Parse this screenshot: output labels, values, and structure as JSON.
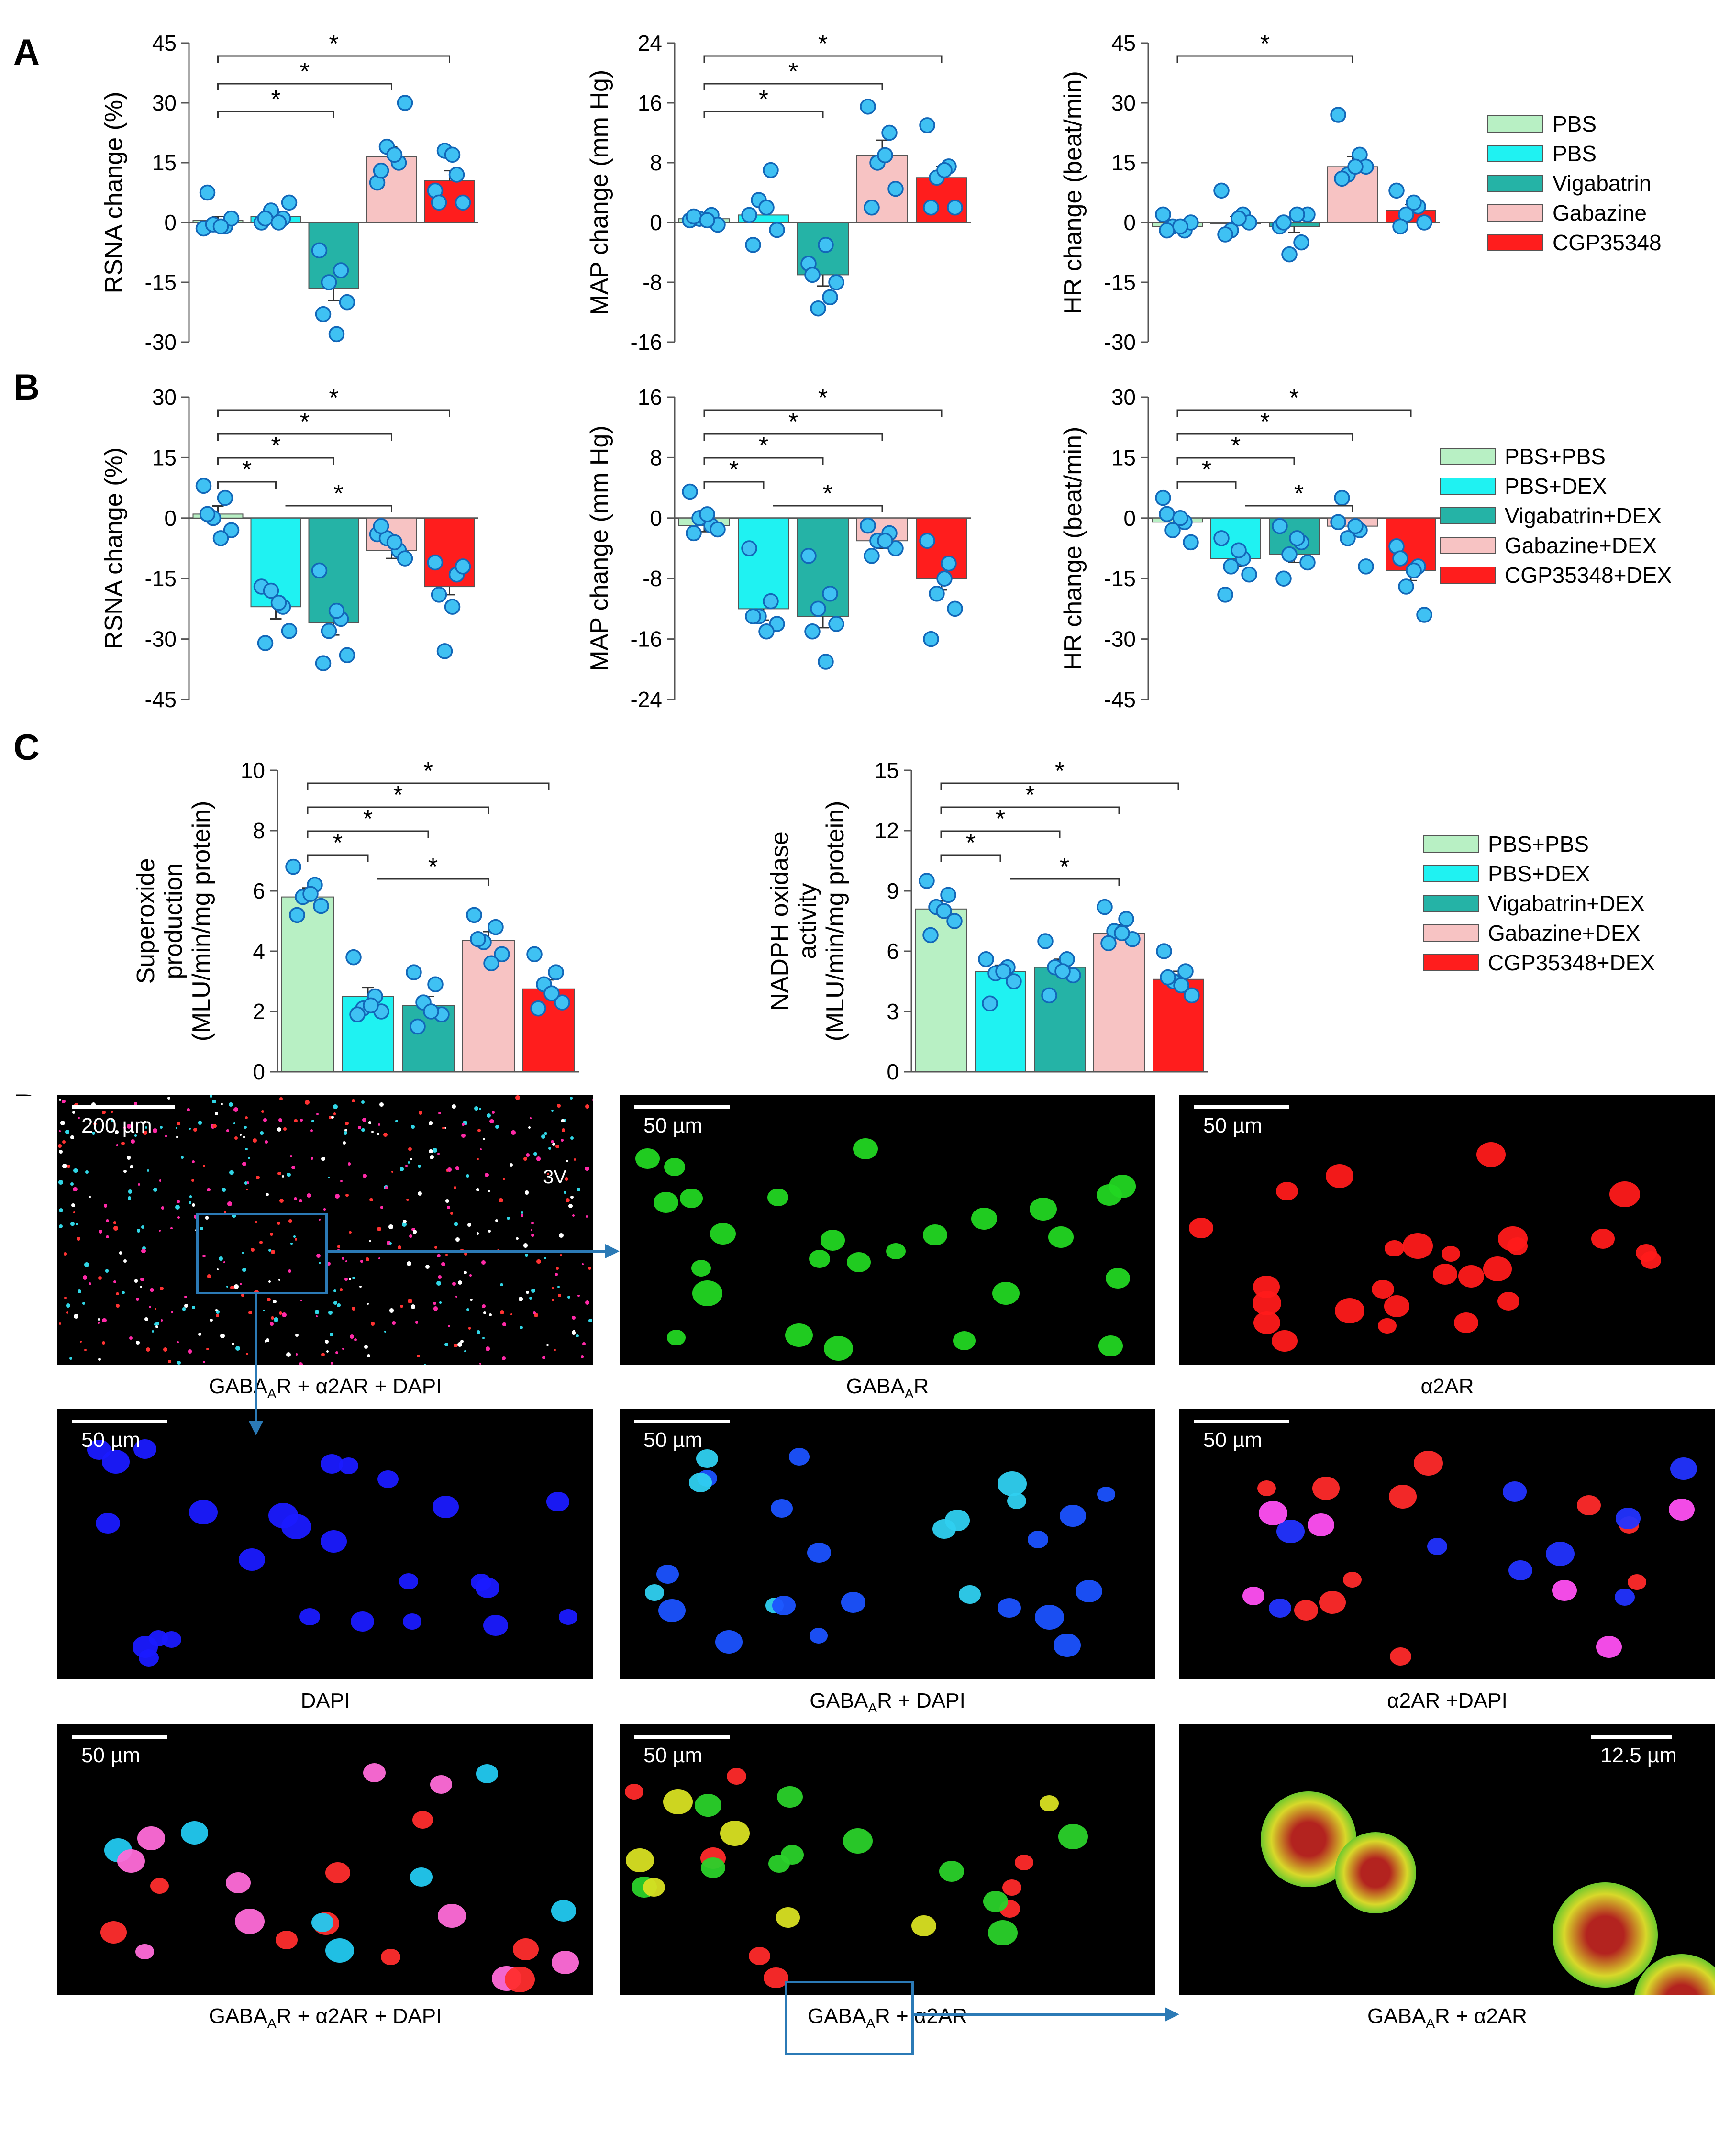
{
  "panels": {
    "A": "A",
    "B": "B",
    "C": "C",
    "D": "D"
  },
  "colors": {
    "PBS_PBS": "#b8f0c4",
    "PBS_DEX": "#1ff2f2",
    "Vigabatrin": "#25b3a6",
    "Gabazine": "#f7c3c3",
    "CGP35348": "#ff1d1d",
    "points": "#3fc1f3",
    "points_edge": "#1267b8"
  },
  "legend_A": [
    "PBS",
    "PBS",
    "Vigabatrin",
    "Gabazine",
    "CGP35348"
  ],
  "legend_B": [
    "PBS+PBS",
    "PBS+DEX",
    "Vigabatrin+DEX",
    "Gabazine+DEX",
    "CGP35348+DEX"
  ],
  "legend_C": [
    "PBS+PBS",
    "PBS+DEX",
    "Vigabatrin+DEX",
    "Gabazine+DEX",
    "CGP35348+DEX"
  ],
  "chart_data": [
    {
      "id": "A_RSNA",
      "type": "bar",
      "panel": "A",
      "ylabel": "RSNA change (%)",
      "ylim": [
        -30,
        45
      ],
      "yticks": [
        -30,
        -15,
        0,
        15,
        30,
        45
      ],
      "categories": [
        "PBS",
        "PBS",
        "Vigabatrin",
        "Gabazine",
        "CGP35348"
      ],
      "values": [
        0.5,
        1.5,
        -16.5,
        16.5,
        10.5
      ],
      "errors": [
        1,
        1,
        3,
        2.5,
        2.5
      ],
      "points": [
        [
          -1.5,
          -1,
          -0.5,
          1,
          7.5,
          -1
        ],
        [
          0,
          1,
          3,
          5,
          1,
          0
        ],
        [
          -7,
          -12,
          -15,
          -20,
          -23,
          -28
        ],
        [
          10,
          15,
          19,
          30,
          13,
          17
        ],
        [
          8,
          12,
          18,
          5,
          5,
          17
        ]
      ],
      "sig": [
        {
          "from": 0,
          "to": 2,
          "label": "*"
        },
        {
          "from": 0,
          "to": 3,
          "label": "*"
        },
        {
          "from": 0,
          "to": 4,
          "label": "*"
        }
      ]
    },
    {
      "id": "A_MAP",
      "type": "bar",
      "panel": "A",
      "ylabel": "MAP change (mm Hg)",
      "ylim": [
        -16,
        24
      ],
      "yticks": [
        -16,
        -8,
        0,
        8,
        16,
        24
      ],
      "categories": [
        "PBS",
        "PBS",
        "Vigabatrin",
        "Gabazine",
        "CGP35348"
      ],
      "values": [
        0.5,
        1,
        -7,
        9,
        6
      ],
      "errors": [
        0.5,
        1.5,
        1.5,
        2,
        1.5
      ],
      "points": [
        [
          0.3,
          1,
          0.5,
          -0.3,
          0.8,
          0.3
        ],
        [
          1,
          7,
          3,
          -1,
          -3,
          2
        ],
        [
          -5.5,
          -10,
          -11.5,
          -8,
          -7,
          -3
        ],
        [
          15.5,
          12,
          8,
          4.5,
          2,
          9
        ],
        [
          13,
          7.5,
          6,
          2,
          2,
          7
        ]
      ],
      "sig": [
        {
          "from": 0,
          "to": 2,
          "label": "*"
        },
        {
          "from": 0,
          "to": 3,
          "label": "*"
        },
        {
          "from": 0,
          "to": 4,
          "label": "*"
        }
      ]
    },
    {
      "id": "A_HR",
      "type": "bar",
      "panel": "A",
      "ylabel": "HR change (beat/min)",
      "ylim": [
        -30,
        45
      ],
      "yticks": [
        -30,
        -15,
        0,
        15,
        30,
        45
      ],
      "categories": [
        "PBS",
        "PBS",
        "Vigabatrin",
        "Gabazine",
        "CGP35348"
      ],
      "values": [
        -1,
        0,
        -1,
        14,
        3
      ],
      "errors": [
        1,
        1.5,
        1.5,
        2.5,
        1.5
      ],
      "points": [
        [
          2,
          -2,
          -1,
          0,
          -2,
          -1
        ],
        [
          8,
          2,
          -2,
          0,
          -3,
          1
        ],
        [
          -1,
          -5,
          -8,
          2,
          0,
          2
        ],
        [
          27,
          17,
          12,
          14,
          11,
          14
        ],
        [
          8,
          4,
          2,
          0,
          -1,
          5
        ]
      ],
      "sig": [
        {
          "from": 0,
          "to": 3,
          "label": "*"
        }
      ]
    },
    {
      "id": "B_RSNA",
      "type": "bar",
      "panel": "B",
      "ylabel": "RSNA change (%)",
      "ylim": [
        -45,
        30
      ],
      "yticks": [
        -45,
        -30,
        -15,
        0,
        15,
        30
      ],
      "categories": [
        "PBS+PBS",
        "PBS+DEX",
        "Vigabatrin+DEX",
        "Gabazine+DEX",
        "CGP35348+DEX"
      ],
      "values": [
        1,
        -22,
        -26,
        -8,
        -17
      ],
      "errors": [
        2,
        3,
        3,
        2,
        2
      ],
      "points": [
        [
          8,
          5,
          0,
          -3,
          1,
          -5
        ],
        [
          -17,
          -22,
          -18,
          -28,
          -31,
          -21
        ],
        [
          -13,
          -25,
          -28,
          -34,
          -36,
          -23
        ],
        [
          -4,
          -8,
          -5,
          -10,
          -2,
          -6
        ],
        [
          -11,
          -14,
          -33,
          -12,
          -19,
          -22
        ]
      ],
      "sig": [
        {
          "from": 0,
          "to": 1,
          "label": "*"
        },
        {
          "from": 0,
          "to": 2,
          "label": "*"
        },
        {
          "from": 0,
          "to": 3,
          "label": "*"
        },
        {
          "from": 0,
          "to": 4,
          "label": "*"
        },
        {
          "from": 1,
          "to": 3,
          "label": "*"
        }
      ]
    },
    {
      "id": "B_MAP",
      "type": "bar",
      "panel": "B",
      "ylabel": "MAP change (mm Hg)",
      "ylim": [
        -24,
        16
      ],
      "yticks": [
        -24,
        -16,
        -8,
        0,
        8,
        16
      ],
      "categories": [
        "PBS+PBS",
        "PBS+DEX",
        "Vigabatrin+DEX",
        "Gabazine+DEX",
        "CGP35348+DEX"
      ],
      "values": [
        -1,
        -12,
        -13,
        -3,
        -8
      ],
      "errors": [
        0.8,
        1.5,
        1.5,
        1,
        1.5
      ],
      "points": [
        [
          3.5,
          -1,
          0,
          -1.5,
          -2,
          0.5
        ],
        [
          -4,
          -11,
          -13,
          -14,
          -13,
          -15
        ],
        [
          -5,
          -10,
          -12,
          -14,
          -15,
          -19
        ],
        [
          -1,
          -2,
          -3,
          -4,
          -5,
          -3
        ],
        [
          -3,
          -6,
          -10,
          -12,
          -16,
          -8
        ]
      ],
      "sig": [
        {
          "from": 0,
          "to": 1,
          "label": "*"
        },
        {
          "from": 0,
          "to": 2,
          "label": "*"
        },
        {
          "from": 0,
          "to": 3,
          "label": "*"
        },
        {
          "from": 0,
          "to": 4,
          "label": "*"
        },
        {
          "from": 1,
          "to": 3,
          "label": "*"
        }
      ]
    },
    {
      "id": "B_HR",
      "type": "bar",
      "panel": "B",
      "ylabel": "HR change (beat/min)",
      "ylim": [
        -45,
        30
      ],
      "yticks": [
        -45,
        -30,
        -15,
        0,
        15,
        30
      ],
      "categories": [
        "PBS+PBS",
        "PBS+DEX",
        "Vigabatrin+DEX",
        "Gabazine+DEX",
        "CGP35348+DEX"
      ],
      "values": [
        -1,
        -10,
        -9,
        -2,
        -13
      ],
      "errors": [
        1.5,
        2,
        2,
        2.5,
        2.5
      ],
      "points": [
        [
          5,
          -1,
          -3,
          -6,
          1,
          0
        ],
        [
          -5,
          -10,
          -12,
          -14,
          -19,
          -8
        ],
        [
          -2,
          -6,
          -9,
          -11,
          -15,
          -5
        ],
        [
          -1,
          -3,
          -5,
          -12,
          5,
          -2
        ],
        [
          -7,
          -12,
          -17,
          -24,
          -10,
          -13
        ]
      ],
      "sig": [
        {
          "from": 0,
          "to": 1,
          "label": "*"
        },
        {
          "from": 0,
          "to": 2,
          "label": "*"
        },
        {
          "from": 0,
          "to": 3,
          "label": "*"
        },
        {
          "from": 0,
          "to": 4,
          "label": "*"
        },
        {
          "from": 1,
          "to": 3,
          "label": "*"
        }
      ]
    },
    {
      "id": "C_Superoxide",
      "type": "bar",
      "panel": "C",
      "ylabel": "Superoxide production (MLU/min/mg protein)",
      "ylim": [
        0,
        10
      ],
      "yticks": [
        0,
        2,
        4,
        6,
        8,
        10
      ],
      "categories": [
        "PBS+PBS",
        "PBS+DEX",
        "Vigabatrin+DEX",
        "Gabazine+DEX",
        "CGP35348+DEX"
      ],
      "values": [
        5.8,
        2.5,
        2.2,
        4.35,
        2.75
      ],
      "errors": [
        0.3,
        0.3,
        0.3,
        0.3,
        0.3
      ],
      "points": [
        [
          6.8,
          6.2,
          5.8,
          5.5,
          5.2,
          5.9
        ],
        [
          3.8,
          2.5,
          2.1,
          2.0,
          1.9,
          2.2
        ],
        [
          3.3,
          2.9,
          2.3,
          1.9,
          1.5,
          2.0
        ],
        [
          5.2,
          4.8,
          4.3,
          3.9,
          4.4,
          3.6
        ],
        [
          3.9,
          3.3,
          2.9,
          2.3,
          2.1,
          2.6
        ]
      ],
      "sig": [
        {
          "from": 0,
          "to": 1,
          "label": "*"
        },
        {
          "from": 0,
          "to": 2,
          "label": "*"
        },
        {
          "from": 0,
          "to": 3,
          "label": "*"
        },
        {
          "from": 0,
          "to": 4,
          "label": "*"
        },
        {
          "from": 1,
          "to": 3,
          "label": "*"
        }
      ]
    },
    {
      "id": "C_NADPH",
      "type": "bar",
      "panel": "C",
      "ylabel": "NADPH oxidase activity (MLU/min/mg protein)",
      "ylim": [
        0,
        15
      ],
      "yticks": [
        0,
        3,
        6,
        9,
        12,
        15
      ],
      "categories": [
        "PBS+PBS",
        "PBS+DEX",
        "Vigabatrin+DEX",
        "Gabazine+DEX",
        "CGP35348+DEX"
      ],
      "values": [
        8.1,
        5.0,
        5.2,
        6.9,
        4.6
      ],
      "errors": [
        0.4,
        0.3,
        0.4,
        0.4,
        0.4
      ],
      "points": [
        [
          9.5,
          8.8,
          8.2,
          7.5,
          6.8,
          8.0
        ],
        [
          5.6,
          5.2,
          4.9,
          4.5,
          3.4,
          5.0
        ],
        [
          6.5,
          5.6,
          5.2,
          4.8,
          3.8,
          5.0
        ],
        [
          8.2,
          7.6,
          7.0,
          6.6,
          6.4,
          6.9
        ],
        [
          6.0,
          5.0,
          4.5,
          3.8,
          4.7,
          4.3
        ]
      ],
      "sig": [
        {
          "from": 0,
          "to": 1,
          "label": "*"
        },
        {
          "from": 0,
          "to": 2,
          "label": "*"
        },
        {
          "from": 0,
          "to": 3,
          "label": "*"
        },
        {
          "from": 0,
          "to": 4,
          "label": "*"
        },
        {
          "from": 1,
          "to": 3,
          "label": "*"
        }
      ]
    }
  ],
  "micrographs": [
    {
      "caption_main": "GABA",
      "caption_sub": "A",
      "caption_rest": "R + α2AR + DAPI",
      "scale": "200 µm",
      "label_3v": "3V"
    },
    {
      "caption_main": "GABA",
      "caption_sub": "A",
      "caption_rest": "R",
      "scale": "50 µm"
    },
    {
      "caption_main": "α2AR",
      "caption_sub": "",
      "caption_rest": "",
      "scale": "50 µm"
    },
    {
      "caption_main": "DAPI",
      "caption_sub": "",
      "caption_rest": "",
      "scale": "50 µm"
    },
    {
      "caption_main": "GABA",
      "caption_sub": "A",
      "caption_rest": "R + DAPI",
      "scale": "50 µm"
    },
    {
      "caption_main": "α2AR +DAPI",
      "caption_sub": "",
      "caption_rest": "",
      "scale": "50 µm"
    },
    {
      "caption_main": "GABA",
      "caption_sub": "A",
      "caption_rest": "R + α2AR + DAPI",
      "scale": "50 µm"
    },
    {
      "caption_main": "GABA",
      "caption_sub": "A",
      "caption_rest": "R + α2AR",
      "scale": "50 µm"
    },
    {
      "caption_main": "GABA",
      "caption_sub": "A",
      "caption_rest": "R + α2AR",
      "scale": "12.5 µm"
    }
  ]
}
